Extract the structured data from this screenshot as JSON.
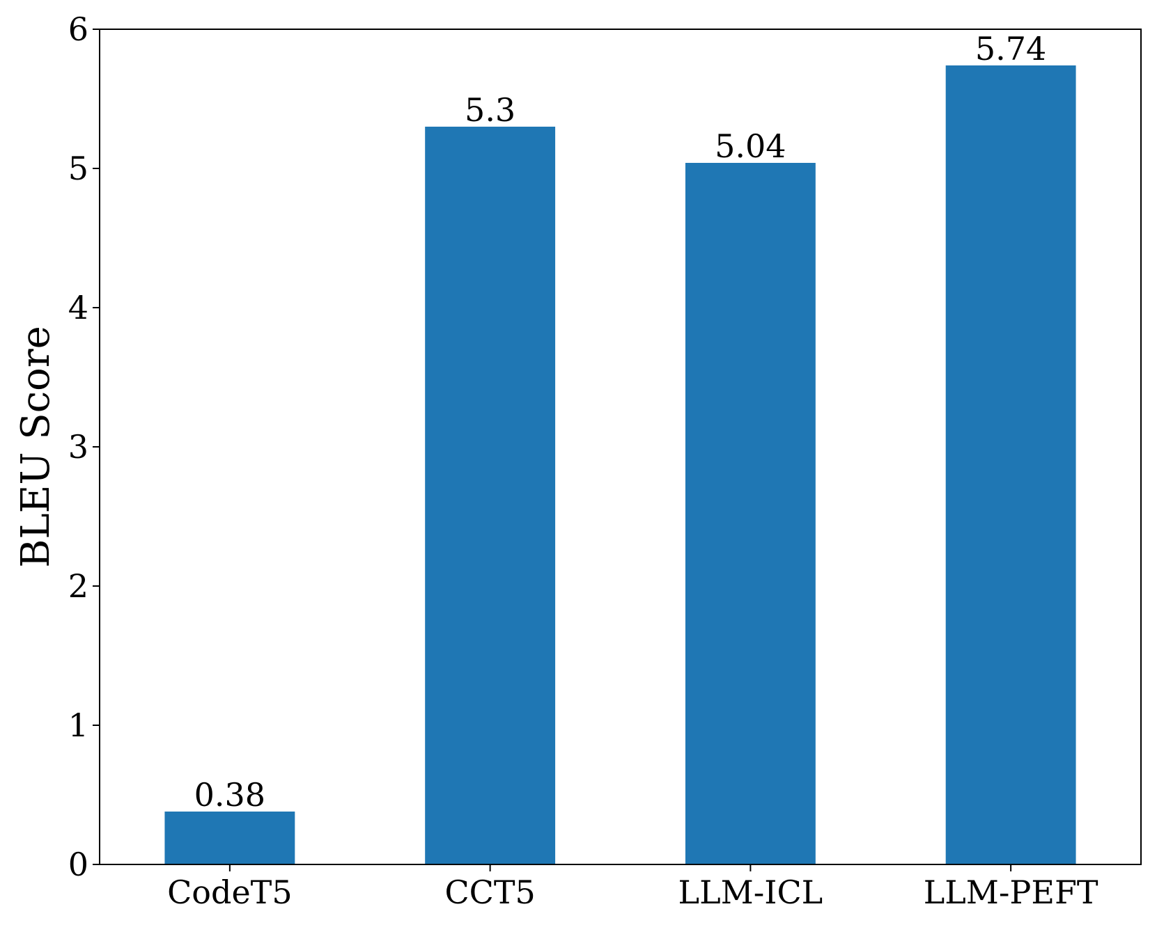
{
  "chart_data": {
    "type": "bar",
    "categories": [
      "CodeT5",
      "CCT5",
      "LLM-ICL",
      "LLM-PEFT"
    ],
    "values": [
      0.38,
      5.3,
      5.04,
      5.74
    ],
    "value_labels": [
      "0.38",
      "5.3",
      "5.04",
      "5.74"
    ],
    "title": "",
    "xlabel": "",
    "ylabel": "BLEU Score",
    "ylim": [
      0,
      6
    ],
    "yticks": [
      0,
      1,
      2,
      3,
      4,
      5,
      6
    ],
    "ytick_labels": [
      "0",
      "1",
      "2",
      "3",
      "4",
      "5",
      "6"
    ],
    "bar_color": "#1f77b4",
    "grid": false,
    "legend": "none"
  }
}
